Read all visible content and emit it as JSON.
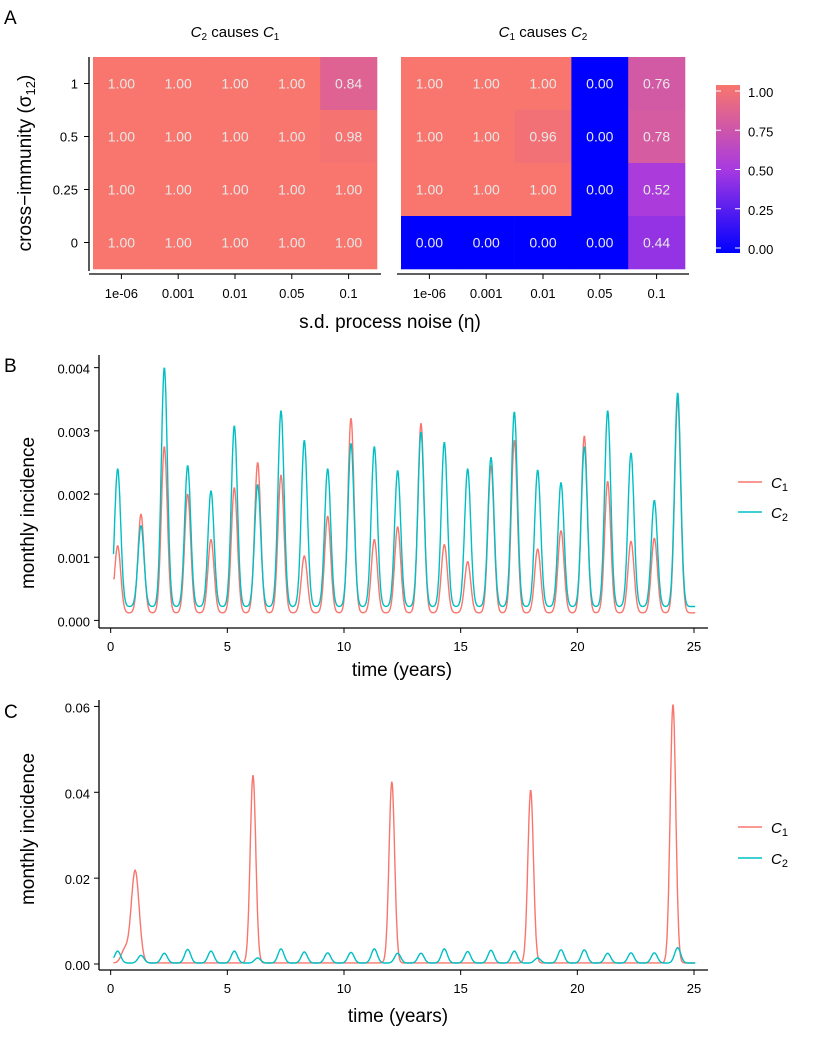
{
  "panel_letters": [
    "A",
    "B",
    "C"
  ],
  "legend": {
    "c1_label": "C",
    "c1_sub": "1",
    "c2_label": "C",
    "c2_sub": "2"
  },
  "colors": {
    "c1": "#F8766D",
    "c2": "#00BFC4",
    "heat_high": "#F8766D",
    "heat_low": "#0000FF",
    "heat_mid": "#A83AE0"
  },
  "chart_data": [
    {
      "type": "heatmap",
      "panel": "A",
      "facets": [
        {
          "title_pre": "C",
          "title_pre_sub": "2",
          "title_mid": " causes ",
          "title_post": "C",
          "title_post_sub": "1",
          "x_categories": [
            "1e-06",
            "0.001",
            "0.01",
            "0.05",
            "0.1"
          ],
          "y_categories": [
            "1",
            "0.5",
            "0.25",
            "0"
          ],
          "values": [
            [
              1.0,
              1.0,
              1.0,
              1.0,
              0.84
            ],
            [
              1.0,
              1.0,
              1.0,
              1.0,
              0.98
            ],
            [
              1.0,
              1.0,
              1.0,
              1.0,
              1.0
            ],
            [
              1.0,
              1.0,
              1.0,
              1.0,
              1.0
            ]
          ]
        },
        {
          "title_pre": "C",
          "title_pre_sub": "1",
          "title_mid": " causes ",
          "title_post": "C",
          "title_post_sub": "2",
          "x_categories": [
            "1e-06",
            "0.001",
            "0.01",
            "0.05",
            "0.1"
          ],
          "y_categories": [
            "1",
            "0.5",
            "0.25",
            "0"
          ],
          "values": [
            [
              1.0,
              1.0,
              1.0,
              0.0,
              0.76
            ],
            [
              1.0,
              1.0,
              0.96,
              0.0,
              0.78
            ],
            [
              1.0,
              1.0,
              1.0,
              0.0,
              0.52
            ],
            [
              0.0,
              0.0,
              0.0,
              0.0,
              0.44
            ]
          ]
        }
      ],
      "xlabel": "s.d. process noise (η)",
      "ylabel_main": "cross−immunity (σ",
      "ylabel_sub": "12",
      "ylabel_close": ")",
      "colorbar_ticks": [
        "1.00",
        "0.75",
        "0.50",
        "0.25",
        "0.00"
      ],
      "colorbar_range": [
        0,
        1
      ]
    },
    {
      "type": "line",
      "panel": "B",
      "xlabel": "time (years)",
      "ylabel": "monthly incidence",
      "xlim": [
        -0.5,
        25.6
      ],
      "ylim": [
        -0.00012,
        0.0042
      ],
      "xticks": [
        "0",
        "5",
        "10",
        "15",
        "20",
        "25"
      ],
      "xtick_values": [
        0,
        5,
        10,
        15,
        20,
        25
      ],
      "yticks": [
        "0.000",
        "0.001",
        "0.002",
        "0.003",
        "0.004"
      ],
      "ytick_values": [
        0,
        0.001,
        0.002,
        0.003,
        0.004
      ],
      "series": [
        {
          "name": "C1",
          "color": "#F8766D",
          "start": 0.00065,
          "peaks": [
            {
              "t": 0.3,
              "h": 0.00118
            },
            {
              "t": 1.3,
              "h": 0.00168
            },
            {
              "t": 2.3,
              "h": 0.00275
            },
            {
              "t": 3.3,
              "h": 0.002
            },
            {
              "t": 4.3,
              "h": 0.00128
            },
            {
              "t": 5.3,
              "h": 0.0021
            },
            {
              "t": 6.3,
              "h": 0.0025
            },
            {
              "t": 7.3,
              "h": 0.0023
            },
            {
              "t": 8.3,
              "h": 0.00102
            },
            {
              "t": 9.3,
              "h": 0.00165
            },
            {
              "t": 10.3,
              "h": 0.0032
            },
            {
              "t": 11.3,
              "h": 0.00128
            },
            {
              "t": 12.3,
              "h": 0.00148
            },
            {
              "t": 13.3,
              "h": 0.00312
            },
            {
              "t": 14.3,
              "h": 0.0012
            },
            {
              "t": 15.3,
              "h": 0.00093
            },
            {
              "t": 16.3,
              "h": 0.00245
            },
            {
              "t": 17.3,
              "h": 0.00285
            },
            {
              "t": 18.3,
              "h": 0.00113
            },
            {
              "t": 19.3,
              "h": 0.00142
            },
            {
              "t": 20.3,
              "h": 0.00292
            },
            {
              "t": 21.3,
              "h": 0.0022
            },
            {
              "t": 22.3,
              "h": 0.00125
            },
            {
              "t": 23.3,
              "h": 0.0013
            },
            {
              "t": 24.3,
              "h": 0.0035
            }
          ]
        },
        {
          "name": "C2",
          "color": "#00BFC4",
          "start": 0.00105,
          "peaks": [
            {
              "t": 0.3,
              "h": 0.0024
            },
            {
              "t": 1.3,
              "h": 0.0015
            },
            {
              "t": 2.3,
              "h": 0.004
            },
            {
              "t": 3.3,
              "h": 0.00245
            },
            {
              "t": 4.3,
              "h": 0.00205
            },
            {
              "t": 5.3,
              "h": 0.00308
            },
            {
              "t": 6.3,
              "h": 0.00215
            },
            {
              "t": 7.3,
              "h": 0.00332
            },
            {
              "t": 8.3,
              "h": 0.00285
            },
            {
              "t": 9.3,
              "h": 0.0024
            },
            {
              "t": 10.3,
              "h": 0.0028
            },
            {
              "t": 11.3,
              "h": 0.00275
            },
            {
              "t": 12.3,
              "h": 0.00237
            },
            {
              "t": 13.3,
              "h": 0.00298
            },
            {
              "t": 14.3,
              "h": 0.00282
            },
            {
              "t": 15.3,
              "h": 0.0024
            },
            {
              "t": 16.3,
              "h": 0.00258
            },
            {
              "t": 17.3,
              "h": 0.0033
            },
            {
              "t": 18.3,
              "h": 0.00238
            },
            {
              "t": 19.3,
              "h": 0.00218
            },
            {
              "t": 20.3,
              "h": 0.00275
            },
            {
              "t": 21.3,
              "h": 0.00332
            },
            {
              "t": 22.3,
              "h": 0.00265
            },
            {
              "t": 23.3,
              "h": 0.0019
            },
            {
              "t": 24.3,
              "h": 0.0036
            }
          ]
        }
      ]
    },
    {
      "type": "line",
      "panel": "C",
      "xlabel": "time (years)",
      "ylabel": "monthly incidence",
      "xlim": [
        -0.5,
        25.6
      ],
      "ylim": [
        -0.0014,
        0.0615
      ],
      "xticks": [
        "0",
        "5",
        "10",
        "15",
        "20",
        "25"
      ],
      "xtick_values": [
        0,
        5,
        10,
        15,
        20,
        25
      ],
      "yticks": [
        "0.00",
        "0.02",
        "0.04",
        "0.06"
      ],
      "ytick_values": [
        0,
        0.02,
        0.04,
        0.06
      ],
      "series": [
        {
          "name": "C1",
          "color": "#F8766D",
          "start": 0.0003,
          "peaks": [
            {
              "t": 1.05,
              "h": 0.0218,
              "w": 0.17
            },
            {
              "t": 6.1,
              "h": 0.044,
              "w": 0.12
            },
            {
              "t": 12.05,
              "h": 0.0425,
              "w": 0.12
            },
            {
              "t": 18.0,
              "h": 0.0405,
              "w": 0.12
            },
            {
              "t": 24.1,
              "h": 0.0605,
              "w": 0.12
            }
          ]
        },
        {
          "name": "C2",
          "color": "#00BFC4",
          "start": 0.0015,
          "peaks": [
            {
              "t": 0.3,
              "h": 0.003
            },
            {
              "t": 1.3,
              "h": 0.002
            },
            {
              "t": 2.3,
              "h": 0.0025
            },
            {
              "t": 3.3,
              "h": 0.0034
            },
            {
              "t": 4.3,
              "h": 0.003
            },
            {
              "t": 5.3,
              "h": 0.003
            },
            {
              "t": 6.3,
              "h": 0.0014
            },
            {
              "t": 7.3,
              "h": 0.0035
            },
            {
              "t": 8.3,
              "h": 0.0028
            },
            {
              "t": 9.3,
              "h": 0.0026
            },
            {
              "t": 10.3,
              "h": 0.0027
            },
            {
              "t": 11.3,
              "h": 0.0035
            },
            {
              "t": 12.3,
              "h": 0.0025
            },
            {
              "t": 13.3,
              "h": 0.0025
            },
            {
              "t": 14.3,
              "h": 0.0035
            },
            {
              "t": 15.3,
              "h": 0.0029
            },
            {
              "t": 16.3,
              "h": 0.0032
            },
            {
              "t": 17.3,
              "h": 0.003
            },
            {
              "t": 18.3,
              "h": 0.0014
            },
            {
              "t": 19.3,
              "h": 0.0033
            },
            {
              "t": 20.3,
              "h": 0.0033
            },
            {
              "t": 21.3,
              "h": 0.0025
            },
            {
              "t": 22.3,
              "h": 0.0026
            },
            {
              "t": 23.3,
              "h": 0.0026
            },
            {
              "t": 24.3,
              "h": 0.0038
            }
          ]
        }
      ]
    }
  ]
}
